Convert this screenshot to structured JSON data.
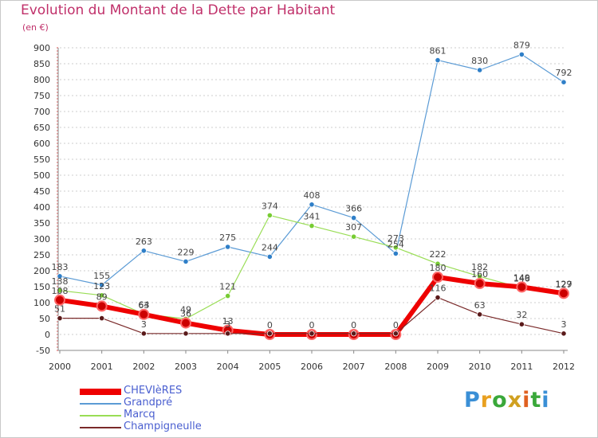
{
  "title": "Evolution du Montant de la Dette par Habitant",
  "subtitle": "(en €)",
  "logo": {
    "text": "Proxiti",
    "colors": [
      "#3a8fd6",
      "#e8a020",
      "#3aa83a",
      "#d0a020",
      "#e06020",
      "#3aa83a",
      "#3a8fd6"
    ]
  },
  "colors": {
    "title": "#c0306a",
    "grid": "#cccccc",
    "axis": "#888888",
    "legend_text": "#4a5fd0"
  },
  "chart_data": {
    "type": "line",
    "title": "Evolution du Montant de la Dette par Habitant",
    "subtitle": "(en €)",
    "x": [
      "2000",
      "2001",
      "2002",
      "2003",
      "2004",
      "2005",
      "2006",
      "2007",
      "2008",
      "2009",
      "2010",
      "2011",
      "2012"
    ],
    "ylim": [
      -50,
      900
    ],
    "yticks": [
      -50,
      0,
      50,
      100,
      150,
      200,
      250,
      300,
      350,
      400,
      450,
      500,
      550,
      600,
      650,
      700,
      750,
      800,
      850,
      900
    ],
    "grid": "horizontal dashed",
    "legend": "bottom-left",
    "series": [
      {
        "name": "Grandpré",
        "color": "#5b9bd5",
        "marker": "#2f7fc8",
        "width": 1.2,
        "values": [
          183,
          155,
          263,
          229,
          275,
          244,
          408,
          366,
          254,
          861,
          830,
          879,
          792
        ],
        "labels": [
          "183",
          "155",
          "263",
          "229",
          "275",
          "244",
          "408",
          "366",
          "254",
          "861",
          "830",
          "879",
          "792"
        ]
      },
      {
        "name": "Marcq",
        "color": "#99dd55",
        "marker": "#77cc33",
        "width": 1.2,
        "values": [
          138,
          123,
          64,
          49,
          121,
          374,
          341,
          307,
          273,
          222,
          182,
          146,
          127
        ],
        "labels": [
          "138",
          "123",
          "64",
          "49",
          "121",
          "374",
          "341",
          "307",
          "273",
          "222",
          "182",
          "146",
          "127"
        ]
      },
      {
        "name": "CHEVIèRES",
        "color": "#ee0000",
        "marker": "#cc0000",
        "width": 6,
        "values": [
          108,
          89,
          63,
          36,
          13,
          0,
          0,
          0,
          0,
          180,
          160,
          149,
          129
        ],
        "labels": [
          "108",
          "89",
          "63",
          "36",
          "13",
          "0",
          "0",
          "0",
          "0",
          "180",
          "160",
          "149",
          "129"
        ]
      },
      {
        "name": "Champigneulle",
        "color": "#7a2a2a",
        "marker": "#5a1a1a",
        "width": 1.2,
        "values": [
          51,
          51,
          3,
          3,
          3,
          3,
          3,
          3,
          3,
          116,
          63,
          32,
          3
        ],
        "labels": [
          "51",
          "",
          "3",
          "",
          "3",
          "",
          "",
          "",
          "",
          "116",
          "63",
          "32",
          "3"
        ]
      }
    ],
    "legend_order": [
      "CHEVIèRES",
      "Grandpré",
      "Marcq",
      "Champigneulle"
    ]
  }
}
